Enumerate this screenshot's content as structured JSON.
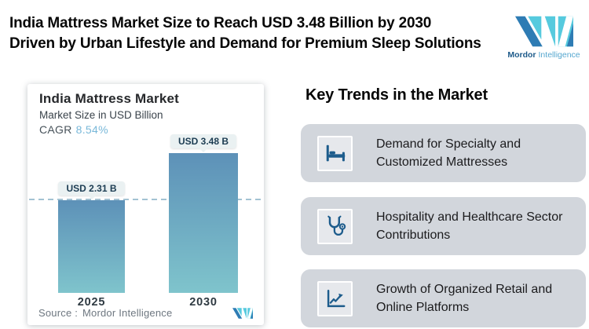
{
  "page": {
    "title_lines": [
      "India Mattress Market Size to Reach USD 3.48 Billion by 2030",
      "Driven by Urban Lifestyle and Demand for Premium Sleep Solutions"
    ]
  },
  "brand": {
    "name_bold": "Mordor",
    "name_light": "Intelligence"
  },
  "chart_card": {
    "title": "India Mattress Market",
    "subtitle": "Market Size in USD Billion",
    "cagr_label": "CAGR",
    "cagr_value": "8.54%",
    "source_prefix": "Source :",
    "source_name": "Mordor Intelligence"
  },
  "chart_data": {
    "type": "bar",
    "title": "India Mattress Market",
    "ylabel": "Market Size in USD Billion",
    "cagr_pct": 8.54,
    "categories": [
      "2025",
      "2030"
    ],
    "values": [
      2.31,
      3.48
    ],
    "value_labels": [
      "USD 2.31 B",
      "USD 3.48 B"
    ],
    "ylim": [
      0,
      3.6
    ],
    "grid": false,
    "legend": "none",
    "reference_line_at": 2.31,
    "bar_gradient_top": "#5d91b8",
    "bar_gradient_bottom": "#7fc4cc"
  },
  "trends": {
    "heading": "Key Trends in the Market",
    "items": [
      {
        "icon": "bed-icon",
        "text": "Demand for Specialty and Customized Mattresses",
        "lines": [
          "Demand for Specialty and",
          "Customized Mattresses"
        ]
      },
      {
        "icon": "stethoscope-icon",
        "text": "Hospitality and Healthcare Sector Contributions",
        "lines": [
          "Hospitality and Healthcare Sector",
          "Contributions"
        ]
      },
      {
        "icon": "line-chart-icon",
        "text": "Growth of Organized Retail and Online Platforms",
        "lines": [
          "Growth of Organized Retail and",
          "Online Platforms"
        ]
      }
    ]
  },
  "colors": {
    "accent_icon_blue": "#1d5c8c",
    "cagr_blue": "#79b8d9",
    "badge_bg": "#eaf1f2",
    "badge_text": "#1c3c52",
    "dash_line": "#a3c3d3",
    "trend_card_bg": "#d2d6dc",
    "logo_dark_blue": "#2e7cb4",
    "logo_teal": "#56cade"
  }
}
